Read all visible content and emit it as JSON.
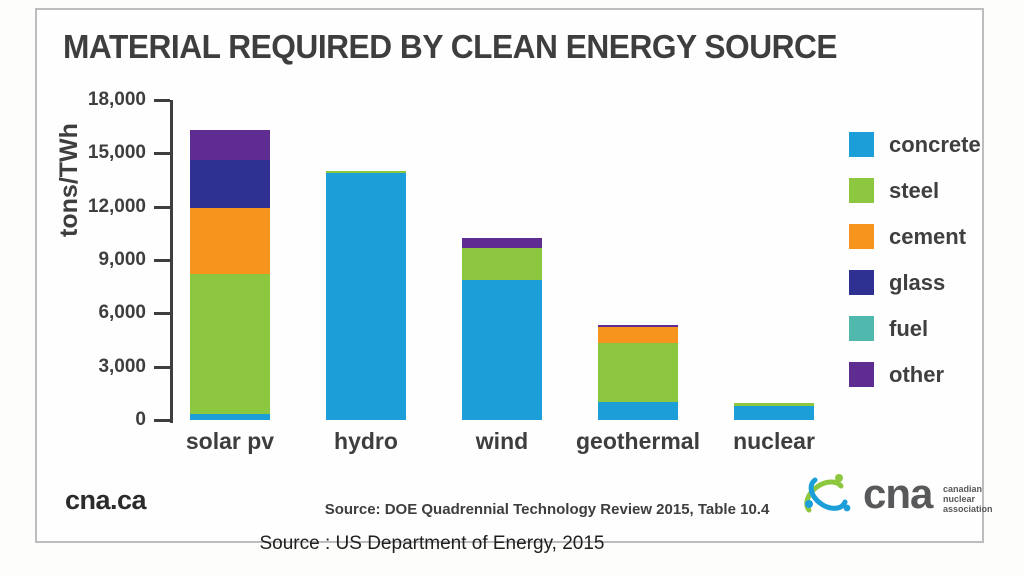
{
  "title": "MATERIAL REQUIRED BY CLEAN ENERGY SOURCE",
  "chart_data": {
    "type": "bar",
    "stacked": true,
    "title": "MATERIAL REQUIRED BY CLEAN ENERGY SOURCE",
    "xlabel": "",
    "ylabel": "tons/TWh",
    "ylim": [
      0,
      18000
    ],
    "ytick_step": 3000,
    "yticks_top_to_bottom": [
      "18,000",
      "15,000",
      "12,000",
      "9,000",
      "6,000",
      "3,000",
      "0"
    ],
    "grid": false,
    "legend_position": "right",
    "categories": [
      "solar pv",
      "hydro",
      "wind",
      "geothermal",
      "nuclear"
    ],
    "series": [
      {
        "name": "concrete",
        "color": "#1c9ed9",
        "values": [
          350,
          13900,
          7900,
          1000,
          760
        ]
      },
      {
        "name": "steel",
        "color": "#8dc63f",
        "values": [
          7900,
          100,
          1800,
          3300,
          160
        ]
      },
      {
        "name": "cement",
        "color": "#f7941e",
        "values": [
          3700,
          0,
          0,
          900,
          0
        ]
      },
      {
        "name": "glass",
        "color": "#2e3192",
        "values": [
          2700,
          0,
          0,
          0,
          0
        ]
      },
      {
        "name": "fuel",
        "color": "#50b8ad",
        "values": [
          0,
          0,
          0,
          0,
          0
        ]
      },
      {
        "name": "other",
        "color": "#5f2d91",
        "values": [
          1700,
          0,
          550,
          100,
          0
        ]
      }
    ]
  },
  "footer": {
    "site": "cna.ca",
    "source": "Source: DOE Quadrennial Technology Review 2015, Table 10.4",
    "logo_word": "cna",
    "logo_tagline": [
      "canadian",
      "nuclear",
      "association"
    ]
  },
  "caption": "Source : US Department of Energy, 2015",
  "colors": {
    "text": "#3e3e3e",
    "border": "#bdbdbd",
    "logo_green": "#8dc63f",
    "logo_blue": "#1c9ed9"
  }
}
